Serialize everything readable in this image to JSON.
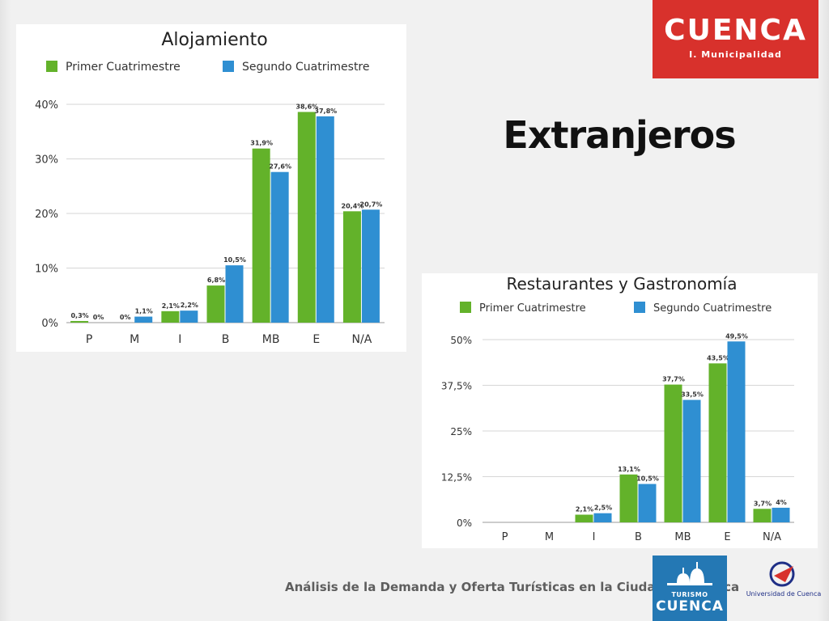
{
  "slide": {
    "title": "Extranjeros",
    "footer": "Análisis de la Demanda y Oferta Turísticas en la Ciudad de Cuenca"
  },
  "logos": {
    "cuenca": {
      "word": "CUENCA",
      "subtitle": "I. Municipalidad",
      "color": "#d8312c"
    },
    "turismo": {
      "sub": "TURISMO",
      "word": "CUENCA",
      "color": "#2478b4"
    },
    "universidad": {
      "text": "Universidad de Cuenca",
      "color": "#1f2f86"
    }
  },
  "chart_data": [
    {
      "type": "bar",
      "title": "Alojamiento",
      "categories": [
        "P",
        "M",
        "I",
        "B",
        "MB",
        "E",
        "N/A"
      ],
      "series": [
        {
          "name": "Primer Cuatrimestre",
          "color": "#63b22a",
          "values": [
            0.3,
            0,
            2.1,
            6.8,
            31.9,
            38.6,
            20.4
          ],
          "labels": [
            "0,3%",
            "0%",
            "2,1%",
            "6,8%",
            "31,9%",
            "38,6%",
            "20,4%"
          ]
        },
        {
          "name": "Segundo Cuatrimestre",
          "color": "#2f8fd2",
          "values": [
            0,
            1.1,
            2.2,
            10.5,
            27.6,
            37.8,
            20.7
          ],
          "labels": [
            "0%",
            "1,1%",
            "2,2%",
            "10,5%",
            "27,6%",
            "37,8%",
            "20,7%"
          ]
        }
      ],
      "yticks": [
        0,
        10,
        20,
        30,
        40
      ],
      "ytick_labels": [
        "0%",
        "10%",
        "20%",
        "30%",
        "40%"
      ],
      "ylim": [
        0,
        40
      ],
      "grid": true,
      "legend": "top"
    },
    {
      "type": "bar",
      "title": "Restaurantes y Gastronomía",
      "categories": [
        "P",
        "M",
        "I",
        "B",
        "MB",
        "E",
        "N/A"
      ],
      "series": [
        {
          "name": "Primer Cuatrimestre",
          "color": "#63b22a",
          "values": [
            null,
            null,
            2.1,
            13.1,
            37.7,
            43.5,
            3.7
          ],
          "labels": [
            "",
            "",
            "2,1%",
            "13,1%",
            "37,7%",
            "43,5%",
            "3,7%"
          ]
        },
        {
          "name": "Segundo Cuatrimestre",
          "color": "#2f8fd2",
          "values": [
            null,
            null,
            2.5,
            10.5,
            33.5,
            49.5,
            4
          ],
          "labels": [
            "",
            "",
            "2,5%",
            "10,5%",
            "33,5%",
            "49,5%",
            "4%"
          ]
        }
      ],
      "yticks": [
        0,
        12.5,
        25,
        37.5,
        50
      ],
      "ytick_labels": [
        "0%",
        "12,5%",
        "25%",
        "37,5%",
        "50%"
      ],
      "ylim": [
        0,
        50
      ],
      "grid": true,
      "legend": "top"
    }
  ]
}
